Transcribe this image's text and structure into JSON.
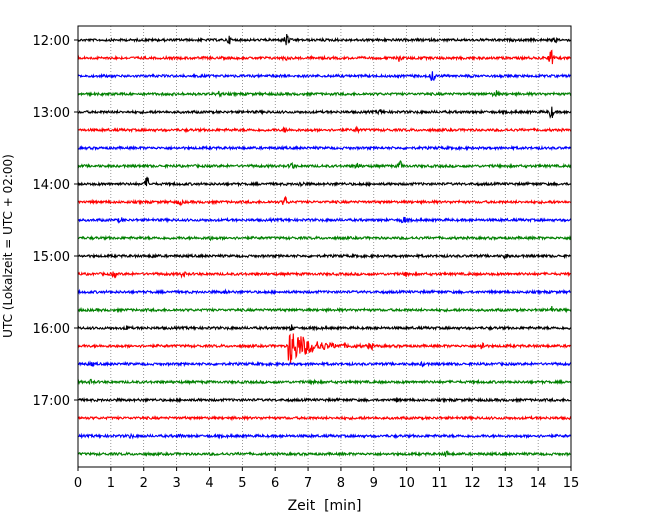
{
  "chart_data": {
    "type": "line",
    "title": "",
    "xlabel": "Zeit  [min]",
    "ylabel": "UTC (Lokalzeit = UTC + 02:00)",
    "xlim": [
      0,
      15
    ],
    "x_ticks": [
      "0",
      "1",
      "2",
      "3",
      "4",
      "5",
      "6",
      "7",
      "8",
      "9",
      "10",
      "11",
      "12",
      "13",
      "14",
      "15"
    ],
    "y_tick_labels": [
      "12:00",
      "13:00",
      "14:00",
      "15:00",
      "16:00",
      "17:00"
    ],
    "grid": "vertical dotted lines at each minute",
    "trace_colors": [
      "#000000",
      "#ff0000",
      "#0000ff",
      "#008000"
    ],
    "traces": [
      {
        "start": "12:00",
        "color": "#000000",
        "events": [
          {
            "t": 4.6,
            "a": 0.45
          },
          {
            "t": 6.35,
            "a": 1.0
          },
          {
            "t": 14.5,
            "a": 0.3
          }
        ]
      },
      {
        "start": "12:15",
        "color": "#ff0000",
        "events": [
          {
            "t": 6.3,
            "a": 0.35
          },
          {
            "t": 9.8,
            "a": 0.55
          },
          {
            "t": 14.4,
            "a": 1.3
          }
        ]
      },
      {
        "start": "12:30",
        "color": "#0000ff",
        "events": [
          {
            "t": 10.8,
            "a": 0.9
          }
        ]
      },
      {
        "start": "12:45",
        "color": "#008000",
        "events": [
          {
            "t": 4.3,
            "a": 0.3
          },
          {
            "t": 12.7,
            "a": 0.6
          }
        ]
      },
      {
        "start": "13:00",
        "color": "#000000",
        "events": [
          {
            "t": 9.2,
            "a": 0.25
          },
          {
            "t": 14.4,
            "a": 0.9
          }
        ]
      },
      {
        "start": "13:15",
        "color": "#ff0000",
        "events": [
          {
            "t": 6.3,
            "a": 0.3
          },
          {
            "t": 8.5,
            "a": 0.3
          }
        ]
      },
      {
        "start": "13:30",
        "color": "#0000ff",
        "events": []
      },
      {
        "start": "13:45",
        "color": "#008000",
        "events": [
          {
            "t": 6.5,
            "a": 0.5
          },
          {
            "t": 8.5,
            "a": 0.45
          },
          {
            "t": 9.8,
            "a": 0.65
          }
        ]
      },
      {
        "start": "14:00",
        "color": "#000000",
        "events": [
          {
            "t": 2.1,
            "a": 1.0
          },
          {
            "t": 6.8,
            "a": 0.35
          }
        ]
      },
      {
        "start": "14:15",
        "color": "#ff0000",
        "events": [
          {
            "t": 3.1,
            "a": 0.35
          },
          {
            "t": 6.3,
            "a": 0.7
          }
        ]
      },
      {
        "start": "14:30",
        "color": "#0000ff",
        "events": [
          {
            "t": 1.3,
            "a": 0.3
          },
          {
            "t": 9.9,
            "a": 0.55
          }
        ]
      },
      {
        "start": "14:45",
        "color": "#008000",
        "events": [
          {
            "t": 4.0,
            "a": 0.2
          }
        ]
      },
      {
        "start": "15:00",
        "color": "#000000",
        "events": [
          {
            "t": 2.3,
            "a": 0.2
          },
          {
            "t": 13.0,
            "a": 0.25
          }
        ]
      },
      {
        "start": "15:15",
        "color": "#ff0000",
        "events": [
          {
            "t": 1.1,
            "a": 0.4
          },
          {
            "t": 3.2,
            "a": 0.4
          },
          {
            "t": 10.0,
            "a": 0.3
          }
        ]
      },
      {
        "start": "15:30",
        "color": "#0000ff",
        "events": [
          {
            "t": 4.5,
            "a": 0.25
          }
        ]
      },
      {
        "start": "15:45",
        "color": "#008000",
        "events": [
          {
            "t": 14.4,
            "a": 0.4
          }
        ]
      },
      {
        "start": "16:00",
        "color": "#000000",
        "events": [
          {
            "t": 1.5,
            "a": 0.25
          },
          {
            "t": 6.5,
            "a": 0.35
          }
        ]
      },
      {
        "start": "16:15",
        "color": "#ff0000",
        "events": [
          {
            "t": 6.45,
            "a": 2.6,
            "long": true
          },
          {
            "t": 8.9,
            "a": 0.55
          },
          {
            "t": 12.3,
            "a": 0.6
          }
        ]
      },
      {
        "start": "16:30",
        "color": "#0000ff",
        "events": [
          {
            "t": 0.4,
            "a": 0.25
          },
          {
            "t": 10.5,
            "a": 0.25
          }
        ]
      },
      {
        "start": "16:45",
        "color": "#008000",
        "events": [
          {
            "t": 0.4,
            "a": 0.25
          },
          {
            "t": 7.2,
            "a": 0.25
          }
        ]
      },
      {
        "start": "17:00",
        "color": "#000000",
        "events": [
          {
            "t": 9.7,
            "a": 0.2
          }
        ]
      },
      {
        "start": "17:15",
        "color": "#ff0000",
        "events": []
      },
      {
        "start": "17:30",
        "color": "#0000ff",
        "events": [
          {
            "t": 1.6,
            "a": 0.2
          },
          {
            "t": 3.1,
            "a": 0.2
          }
        ]
      },
      {
        "start": "17:45",
        "color": "#008000",
        "events": [
          {
            "t": 11.2,
            "a": 0.35
          }
        ]
      }
    ]
  }
}
